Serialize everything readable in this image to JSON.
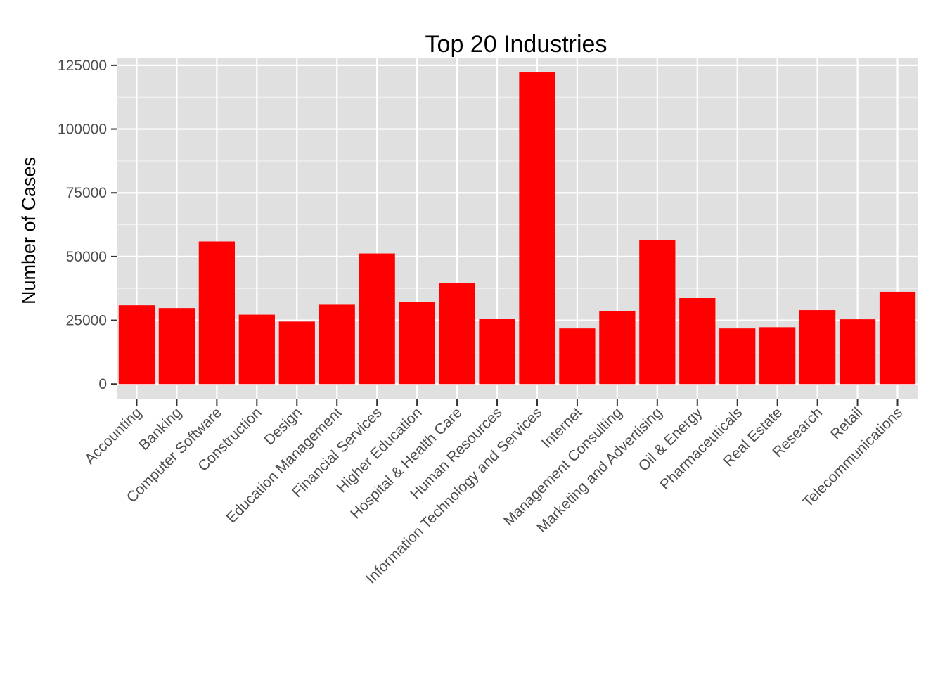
{
  "chart_data": {
    "type": "bar",
    "title": "Top 20 Industries",
    "xlabel": "",
    "ylabel": "Number of Cases",
    "categories": [
      "Accounting",
      "Banking",
      "Computer Software",
      "Construction",
      "Design",
      "Education Management",
      "Financial Services",
      "Higher Education",
      "Hospital & Health Care",
      "Human Resources",
      "Information Technology and Services",
      "Internet",
      "Management Consulting",
      "Marketing and Advertising",
      "Oil & Energy",
      "Pharmaceuticals",
      "Real Estate",
      "Research",
      "Retail",
      "Telecommunications"
    ],
    "values": [
      30900,
      29800,
      55900,
      27200,
      24500,
      31100,
      51200,
      32300,
      39500,
      25600,
      122200,
      21800,
      28700,
      56400,
      33700,
      21800,
      22300,
      29000,
      25400,
      36200
    ],
    "yticks": [
      0,
      25000,
      50000,
      75000,
      100000,
      125000
    ],
    "ylim": [
      -6000,
      128000
    ],
    "grid": true,
    "bar_color": "#fe0000",
    "panel_color": "#e0e0e0",
    "grid_color": "#ffffff",
    "legend": "none"
  }
}
